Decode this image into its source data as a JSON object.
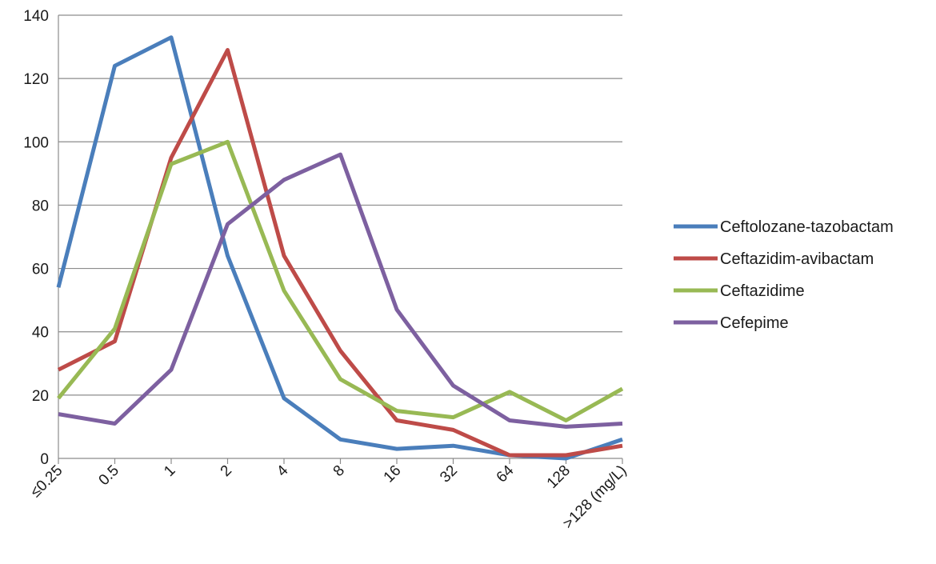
{
  "chart_data": {
    "type": "line",
    "title": "",
    "xlabel": "",
    "ylabel": "",
    "categories": [
      "≤0.25",
      "0.5",
      "1",
      "2",
      "4",
      "8",
      "16",
      "32",
      "64",
      "128",
      ">128 (mg/L)"
    ],
    "ylim": [
      0,
      140
    ],
    "yticks": [
      0,
      20,
      40,
      60,
      80,
      100,
      120,
      140
    ],
    "grid": true,
    "legend_position": "right",
    "series": [
      {
        "name": "Ceftolozane-tazobactam",
        "color": "#4a7ebb",
        "values": [
          54,
          124,
          133,
          64,
          19,
          6,
          3,
          4,
          1,
          0,
          6
        ]
      },
      {
        "name": "Ceftazidim-avibactam",
        "color": "#be4b48",
        "values": [
          28,
          37,
          95,
          129,
          64,
          34,
          12,
          9,
          1,
          1,
          4
        ]
      },
      {
        "name": "Ceftazidime",
        "color": "#98b954",
        "values": [
          19,
          41,
          93,
          100,
          53,
          25,
          15,
          13,
          21,
          12,
          22
        ]
      },
      {
        "name": "Cefepime",
        "color": "#7d60a0",
        "values": [
          14,
          11,
          28,
          74,
          88,
          96,
          47,
          23,
          12,
          10,
          11
        ]
      }
    ]
  }
}
